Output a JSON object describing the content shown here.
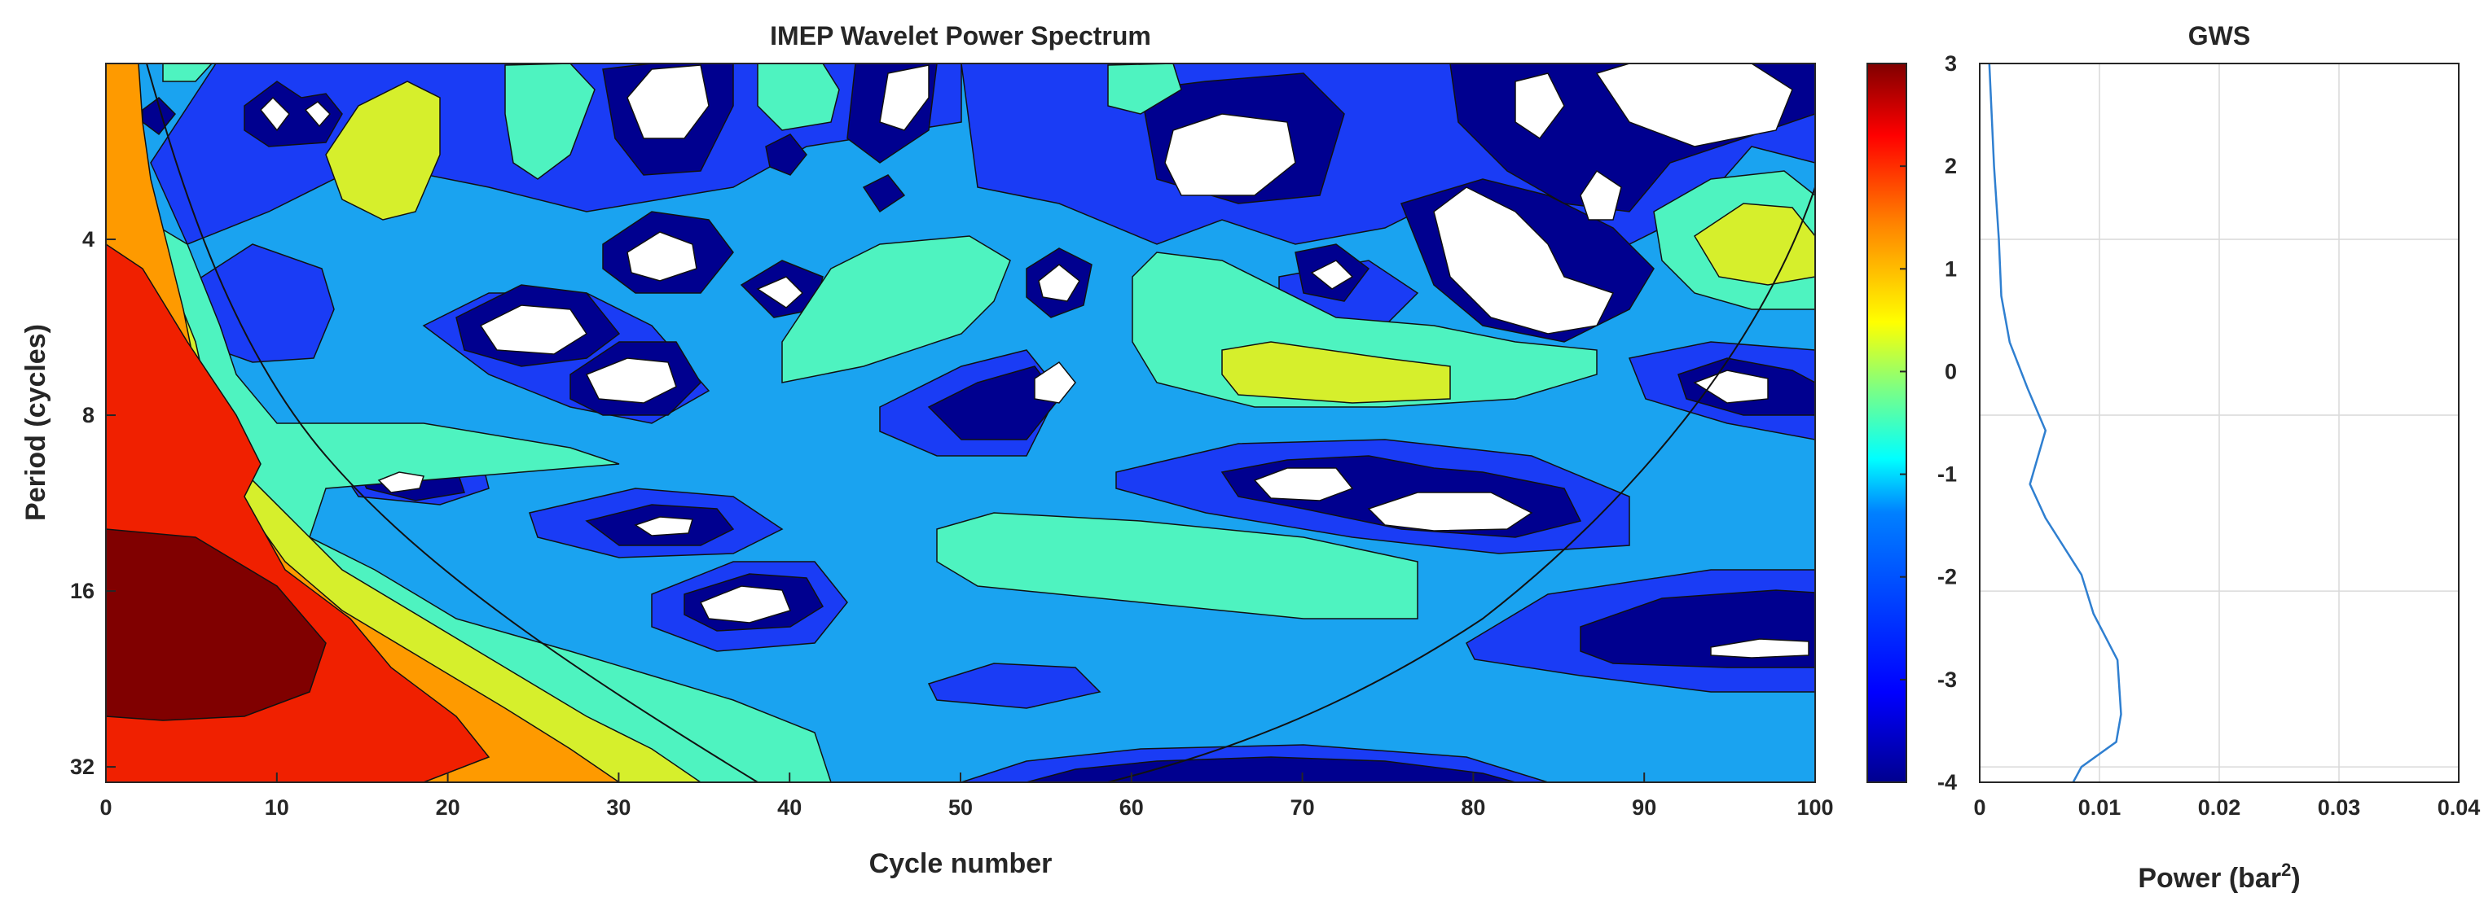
{
  "chart_data": [
    {
      "type": "heatmap",
      "title": "IMEP Wavelet Power Spectrum",
      "xlabel": "Cycle number",
      "ylabel": "Period (cycles)",
      "xlim": [
        0,
        100
      ],
      "x_ticks": [
        0,
        10,
        20,
        30,
        40,
        50,
        60,
        70,
        80,
        90,
        100
      ],
      "y_scale": "log2",
      "ylim": [
        2,
        34
      ],
      "y_ticks": [
        4,
        8,
        16,
        32
      ],
      "colorbar": {
        "ticks": [
          3,
          2,
          1,
          0,
          -1,
          -2,
          -3,
          -4
        ],
        "range": [
          -4,
          3
        ],
        "colormap": [
          "#00008f",
          "#0000ff",
          "#0080ff",
          "#00ffff",
          "#80ff80",
          "#ffff00",
          "#ff8000",
          "#ff0000",
          "#800000"
        ]
      },
      "levels": [
        {
          "color": "#ffffff",
          "value": "below -4"
        },
        {
          "color": "#00008f",
          "value": "-4"
        },
        {
          "color": "#1a3cf5",
          "value": "-3"
        },
        {
          "color": "#1aa3f0",
          "value": "-2"
        },
        {
          "color": "#4ef3c0",
          "value": "-1"
        },
        {
          "color": "#d6ef2c",
          "value": "0"
        },
        {
          "color": "#fe9a00",
          "value": "1"
        },
        {
          "color": "#f02000",
          "value": "2"
        },
        {
          "color": "#800000",
          "value": "3"
        }
      ],
      "grid": false
    },
    {
      "type": "line",
      "title": "GWS",
      "xlabel": "Power (bar",
      "xlabel_superscript": "2",
      "xlabel_suffix": ")",
      "xlim": [
        0,
        0.04
      ],
      "x_ticks": [
        "0",
        "0.01",
        "0.02",
        "0.03",
        "0.04"
      ],
      "y_scale": "log2",
      "ylim": [
        2,
        34
      ],
      "grid": true,
      "series": [
        {
          "color": "#2f7fd0",
          "points": [
            {
              "power": 0.0008,
              "period": 2.0
            },
            {
              "power": 0.0012,
              "period": 3.0
            },
            {
              "power": 0.0016,
              "period": 4.0
            },
            {
              "power": 0.0018,
              "period": 5.0
            },
            {
              "power": 0.0025,
              "period": 6.0
            },
            {
              "power": 0.004,
              "period": 7.2
            },
            {
              "power": 0.0055,
              "period": 8.5
            },
            {
              "power": 0.0042,
              "period": 10.5
            },
            {
              "power": 0.0055,
              "period": 12.0
            },
            {
              "power": 0.0085,
              "period": 15.0
            },
            {
              "power": 0.0095,
              "period": 17.5
            },
            {
              "power": 0.0115,
              "period": 21.0
            },
            {
              "power": 0.0118,
              "period": 26.0
            },
            {
              "power": 0.0114,
              "period": 29.0
            },
            {
              "power": 0.0085,
              "period": 32.0
            },
            {
              "power": 0.0078,
              "period": 34.0
            }
          ]
        }
      ]
    }
  ]
}
